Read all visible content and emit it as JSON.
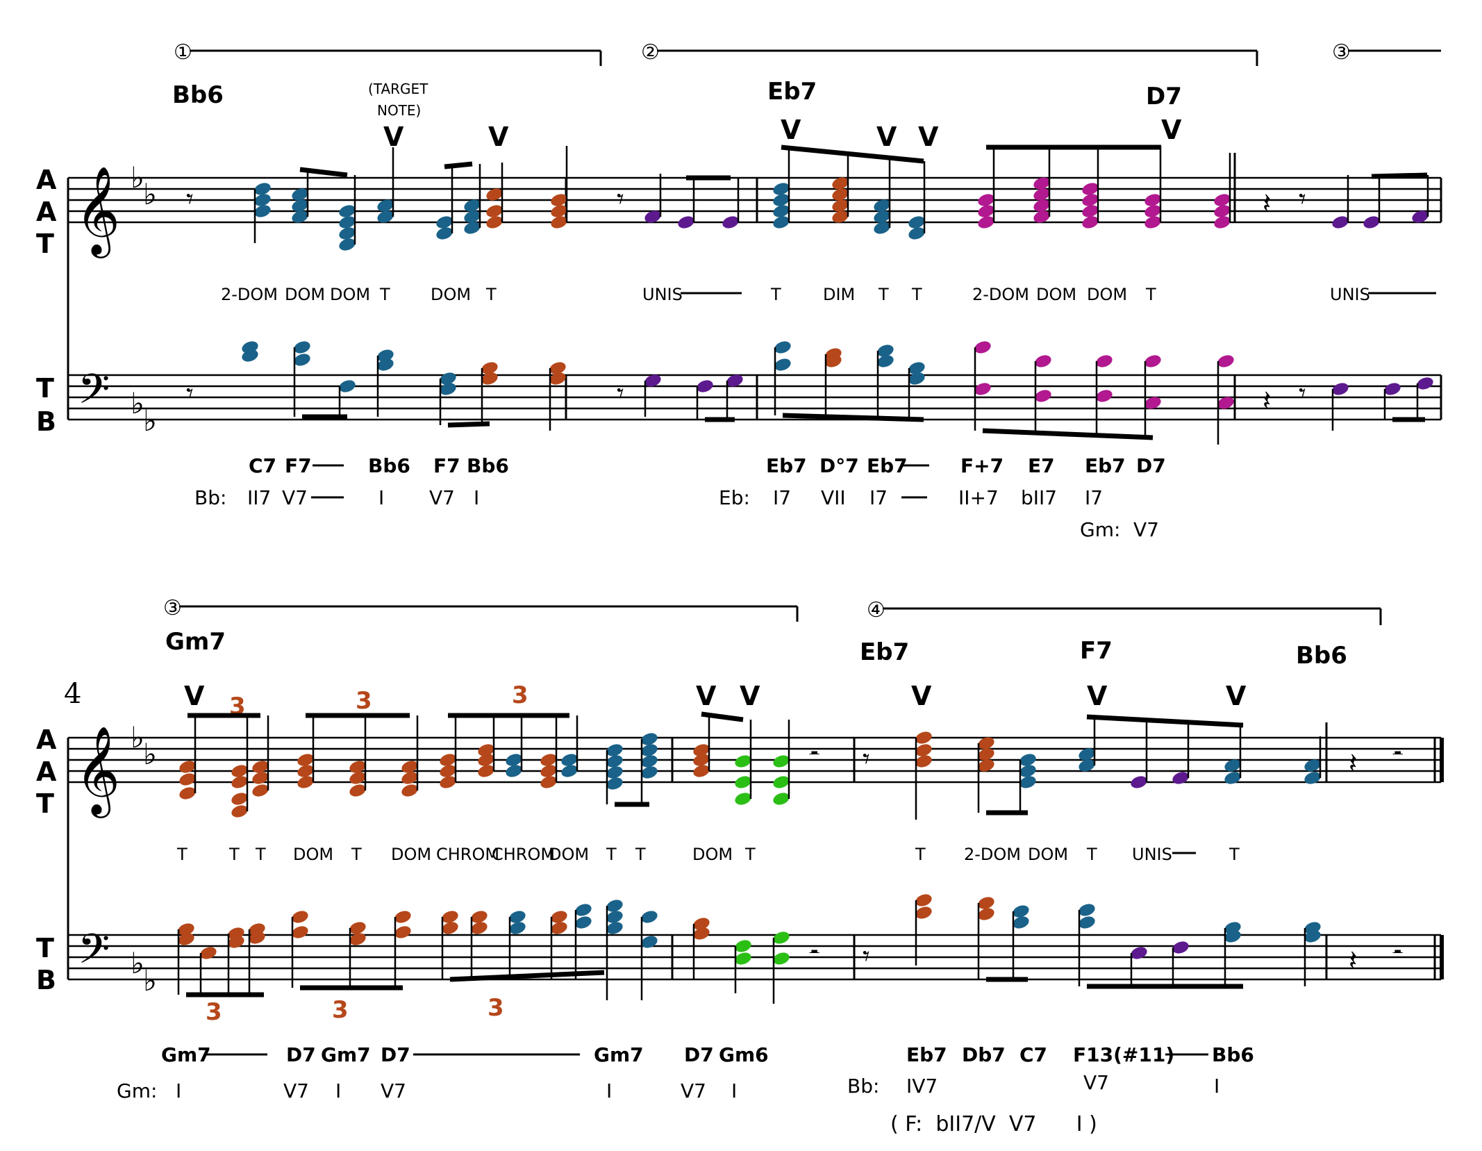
{
  "colors": {
    "blue": "#1a6289",
    "orange": "#b5471a",
    "purple": "#5d1a8f",
    "magenta": "#b2188f",
    "green": "#2bbf16",
    "ink": "#000000",
    "red_numeral": "#b5471a"
  },
  "system1": {
    "phrase_marks": [
      "①",
      "②",
      "③"
    ],
    "chords_top": [
      "Bb6",
      "Eb7",
      "D7"
    ],
    "target_note": "(TARGET\nNOTE)",
    "target_line1": "(TARGET",
    "target_line2": "NOTE)",
    "accent": "V",
    "staff_labels_upper": [
      "A",
      "A",
      "T"
    ],
    "staff_labels_lower": [
      "T",
      "B"
    ],
    "technique_labels": [
      "2-DOM",
      "DOM",
      "DOM",
      "T",
      "DOM",
      "T",
      "UNIS",
      "T",
      "DIM",
      "T",
      "T",
      "2-DOM",
      "DOM",
      "DOM",
      "T",
      "UNIS"
    ],
    "chord_symbols_bottom": [
      "C7",
      "F7",
      "Bb6",
      "F7",
      "Bb6",
      "Eb7",
      "D°7",
      "Eb7",
      "F+7",
      "E7",
      "Eb7",
      "D7"
    ],
    "key_labels": [
      "Bb:",
      "Eb:",
      "Gm:"
    ],
    "roman_bb": [
      "II7",
      "V7",
      "I",
      "V7",
      "I"
    ],
    "roman_eb": [
      "I7",
      "VII",
      "I7",
      "II+7",
      "bII7",
      "I7"
    ],
    "roman_gm": [
      "V7"
    ]
  },
  "system2": {
    "measure_number": "4",
    "phrase_marks": [
      "③",
      "④"
    ],
    "chords_top": [
      "Gm7",
      "Eb7",
      "F7",
      "Bb6"
    ],
    "triplet": "3",
    "technique_labels": [
      "T",
      "T",
      "T",
      "DOM",
      "T",
      "DOM",
      "CHROM",
      "CHROM",
      "DOM",
      "T",
      "T",
      "DOM",
      "T",
      "T",
      "2-DOM",
      "DOM",
      "T",
      "UNIS",
      "T"
    ],
    "chord_symbols_bottom": [
      "Gm7",
      "D7",
      "Gm7",
      "D7",
      "Gm7",
      "D7",
      "Gm6",
      "Eb7",
      "Db7",
      "C7",
      "F13(#11)",
      "Bb6"
    ],
    "key_labels": [
      "Gm:",
      "Bb:"
    ],
    "roman_gm": [
      "I",
      "V7",
      "I",
      "V7",
      "I",
      "V7",
      "I"
    ],
    "roman_bb": [
      "IV7",
      "V7",
      "I"
    ],
    "paren_analysis": "( F:  bII7/V  V7      I )"
  }
}
